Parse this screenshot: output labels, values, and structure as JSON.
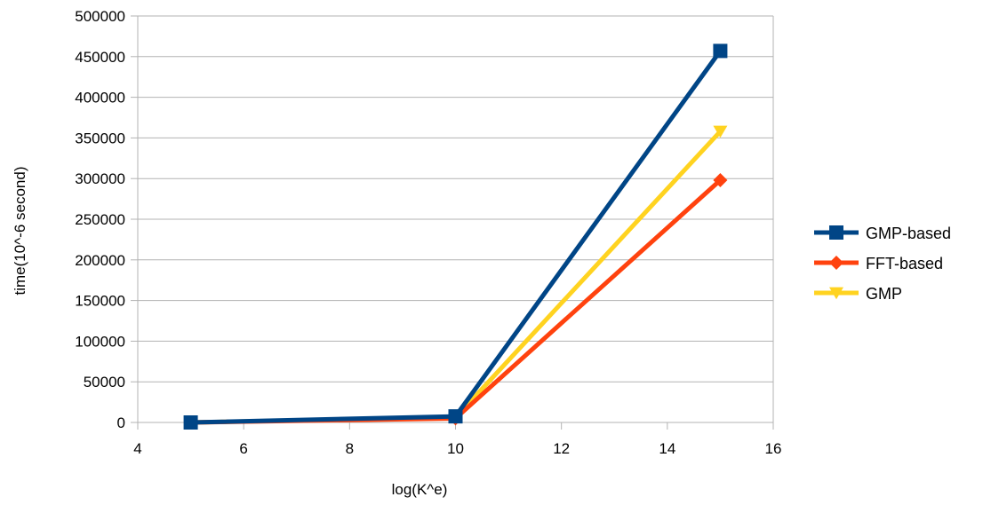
{
  "chart_data": {
    "type": "line",
    "xlabel": "log(K^e)",
    "ylabel": "time(10^-6 second)",
    "xlim": [
      4,
      16
    ],
    "ylim": [
      0,
      500000
    ],
    "xticks": [
      "4",
      "6",
      "8",
      "10",
      "12",
      "14",
      "16"
    ],
    "yticks": [
      "0",
      "50000",
      "100000",
      "150000",
      "200000",
      "250000",
      "300000",
      "350000",
      "400000",
      "450000",
      "500000"
    ],
    "grid": "horizontal",
    "legend": "right",
    "series": [
      {
        "name": "GMP-based",
        "color": "#004586",
        "marker": "square",
        "x": [
          5,
          10,
          15
        ],
        "y": [
          0,
          7500,
          457000
        ]
      },
      {
        "name": "FFT-based",
        "color": "#ff420e",
        "marker": "diamond",
        "x": [
          5,
          10,
          15
        ],
        "y": [
          0,
          5000,
          298000
        ]
      },
      {
        "name": "GMP",
        "color": "#ffd320",
        "marker": "triangle-down",
        "x": [
          5,
          10,
          15
        ],
        "y": [
          0,
          6000,
          358000
        ]
      }
    ]
  }
}
